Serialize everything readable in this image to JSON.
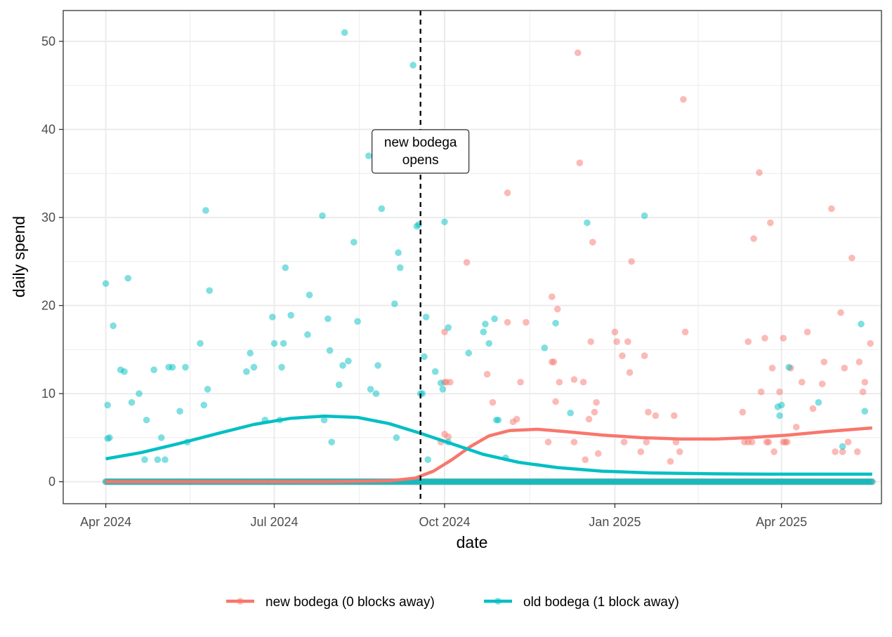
{
  "chart_data": {
    "type": "scatter",
    "title": "",
    "xlabel": "date",
    "ylabel": "daily spend",
    "x_type": "date",
    "xlim": [
      "2024-03-09",
      "2025-05-25"
    ],
    "ylim": [
      -2.5,
      53.5
    ],
    "x_ticks": [
      {
        "date": "2024-04-01",
        "label": "Apr 2024"
      },
      {
        "date": "2024-07-01",
        "label": "Jul 2024"
      },
      {
        "date": "2024-10-01",
        "label": "Oct 2024"
      },
      {
        "date": "2025-01-01",
        "label": "Jan 2025"
      },
      {
        "date": "2025-04-01",
        "label": "Apr 2025"
      }
    ],
    "y_ticks": [
      0,
      10,
      20,
      30,
      40,
      50
    ],
    "grid": true,
    "legend_position": "bottom",
    "annotation": {
      "date": "2024-09-18",
      "lines": [
        "new bodega",
        "opens"
      ],
      "y": 37.5
    },
    "series": [
      {
        "name": "new bodega (0 blocks away)",
        "color": "#F8766D",
        "zero_range": [
          "2024-04-01",
          "2025-05-20"
        ],
        "points": [
          [
            "2024-10-01",
            17.0
          ],
          [
            "2024-10-01",
            11.3
          ],
          [
            "2024-10-02",
            11.3
          ],
          [
            "2024-10-04",
            11.3
          ],
          [
            "2024-10-03",
            5.1
          ],
          [
            "2024-09-29",
            4.5
          ],
          [
            "2024-10-01",
            5.4
          ],
          [
            "2024-10-13",
            24.9
          ],
          [
            "2024-10-24",
            12.2
          ],
          [
            "2024-10-27",
            9.0
          ],
          [
            "2024-11-04",
            32.8
          ],
          [
            "2024-11-04",
            18.1
          ],
          [
            "2024-11-07",
            6.8
          ],
          [
            "2024-11-09",
            7.1
          ],
          [
            "2024-11-11",
            11.3
          ],
          [
            "2024-11-14",
            18.1
          ],
          [
            "2024-11-26",
            4.5
          ],
          [
            "2024-11-28",
            21.0
          ],
          [
            "2024-11-28",
            13.6
          ],
          [
            "2024-11-29",
            13.6
          ],
          [
            "2024-11-30",
            9.1
          ],
          [
            "2024-12-01",
            19.6
          ],
          [
            "2024-12-02",
            11.3
          ],
          [
            "2024-12-10",
            4.5
          ],
          [
            "2024-12-10",
            11.6
          ],
          [
            "2024-12-12",
            48.7
          ],
          [
            "2024-12-13",
            36.2
          ],
          [
            "2024-12-15",
            11.3
          ],
          [
            "2024-12-16",
            2.5
          ],
          [
            "2024-12-18",
            7.1
          ],
          [
            "2024-12-19",
            15.9
          ],
          [
            "2024-12-20",
            27.2
          ],
          [
            "2024-12-21",
            7.9
          ],
          [
            "2024-12-22",
            9.0
          ],
          [
            "2024-12-23",
            3.2
          ],
          [
            "2025-01-01",
            17.0
          ],
          [
            "2025-01-02",
            15.9
          ],
          [
            "2025-01-05",
            14.3
          ],
          [
            "2025-01-06",
            4.5
          ],
          [
            "2025-01-08",
            15.9
          ],
          [
            "2025-01-09",
            12.4
          ],
          [
            "2025-01-10",
            25.0
          ],
          [
            "2025-01-15",
            3.4
          ],
          [
            "2025-01-17",
            14.3
          ],
          [
            "2025-01-18",
            4.5
          ],
          [
            "2025-01-19",
            7.9
          ],
          [
            "2025-01-23",
            7.5
          ],
          [
            "2025-01-31",
            2.3
          ],
          [
            "2025-02-02",
            7.5
          ],
          [
            "2025-02-03",
            4.5
          ],
          [
            "2025-02-05",
            3.4
          ],
          [
            "2025-02-07",
            43.4
          ],
          [
            "2025-02-08",
            17.0
          ],
          [
            "2025-03-11",
            7.9
          ],
          [
            "2025-03-12",
            4.5
          ],
          [
            "2025-03-14",
            15.9
          ],
          [
            "2025-03-14",
            4.5
          ],
          [
            "2025-03-16",
            4.5
          ],
          [
            "2025-03-17",
            27.6
          ],
          [
            "2025-03-20",
            35.1
          ],
          [
            "2025-03-21",
            10.2
          ],
          [
            "2025-03-23",
            16.3
          ],
          [
            "2025-03-24",
            4.5
          ],
          [
            "2025-03-25",
            4.5
          ],
          [
            "2025-03-26",
            29.4
          ],
          [
            "2025-03-27",
            12.9
          ],
          [
            "2025-03-28",
            3.4
          ],
          [
            "2025-03-31",
            10.2
          ],
          [
            "2025-04-02",
            16.3
          ],
          [
            "2025-04-02",
            4.5
          ],
          [
            "2025-04-03",
            4.5
          ],
          [
            "2025-04-04",
            4.5
          ],
          [
            "2025-04-06",
            12.9
          ],
          [
            "2025-04-09",
            6.2
          ],
          [
            "2025-04-12",
            11.3
          ],
          [
            "2025-04-15",
            17.0
          ],
          [
            "2025-04-18",
            8.3
          ],
          [
            "2025-04-23",
            11.1
          ],
          [
            "2025-04-24",
            13.6
          ],
          [
            "2025-04-28",
            31.0
          ],
          [
            "2025-04-30",
            3.4
          ],
          [
            "2025-05-03",
            19.2
          ],
          [
            "2025-05-04",
            3.4
          ],
          [
            "2025-05-05",
            12.9
          ],
          [
            "2025-05-07",
            4.5
          ],
          [
            "2025-05-09",
            25.4
          ],
          [
            "2025-05-12",
            3.4
          ],
          [
            "2025-05-13",
            13.6
          ],
          [
            "2025-05-15",
            10.2
          ],
          [
            "2025-05-16",
            11.3
          ],
          [
            "2025-05-19",
            15.7
          ]
        ],
        "trend": [
          [
            "2024-04-01",
            0
          ],
          [
            "2024-06-01",
            0
          ],
          [
            "2024-08-01",
            0
          ],
          [
            "2024-09-01",
            0.1
          ],
          [
            "2024-09-15",
            0.4
          ],
          [
            "2024-09-25",
            1.2
          ],
          [
            "2024-10-05",
            2.5
          ],
          [
            "2024-10-15",
            4.0
          ],
          [
            "2024-10-25",
            5.2
          ],
          [
            "2024-11-05",
            5.8
          ],
          [
            "2024-11-20",
            5.95
          ],
          [
            "2024-12-05",
            5.7
          ],
          [
            "2024-12-25",
            5.3
          ],
          [
            "2025-01-15",
            5.0
          ],
          [
            "2025-02-05",
            4.85
          ],
          [
            "2025-02-25",
            4.85
          ],
          [
            "2025-03-15",
            5.0
          ],
          [
            "2025-04-05",
            5.3
          ],
          [
            "2025-04-25",
            5.7
          ],
          [
            "2025-05-20",
            6.1
          ]
        ]
      },
      {
        "name": "old bodega (1 block away)",
        "color": "#00BFC4",
        "zero_range": [
          "2024-04-01",
          "2025-05-20"
        ],
        "points": [
          [
            "2024-04-01",
            22.5
          ],
          [
            "2024-04-02",
            8.7
          ],
          [
            "2024-04-02",
            4.9
          ],
          [
            "2024-04-03",
            5.0
          ],
          [
            "2024-04-05",
            17.7
          ],
          [
            "2024-04-09",
            12.7
          ],
          [
            "2024-04-11",
            12.5
          ],
          [
            "2024-04-13",
            23.1
          ],
          [
            "2024-04-15",
            9.0
          ],
          [
            "2024-04-19",
            10.0
          ],
          [
            "2024-04-22",
            2.5
          ],
          [
            "2024-04-23",
            7.0
          ],
          [
            "2024-04-27",
            12.7
          ],
          [
            "2024-04-29",
            2.5
          ],
          [
            "2024-05-01",
            5.0
          ],
          [
            "2024-05-03",
            2.5
          ],
          [
            "2024-05-05",
            13.0
          ],
          [
            "2024-05-07",
            13.0
          ],
          [
            "2024-05-11",
            8.0
          ],
          [
            "2024-05-14",
            13.0
          ],
          [
            "2024-05-15",
            4.5
          ],
          [
            "2024-05-22",
            15.7
          ],
          [
            "2024-05-24",
            8.7
          ],
          [
            "2024-05-25",
            30.8
          ],
          [
            "2024-05-26",
            10.5
          ],
          [
            "2024-05-27",
            21.7
          ],
          [
            "2024-06-16",
            12.5
          ],
          [
            "2024-06-18",
            14.6
          ],
          [
            "2024-06-20",
            13.0
          ],
          [
            "2024-06-26",
            7.0
          ],
          [
            "2024-06-30",
            18.7
          ],
          [
            "2024-07-01",
            15.7
          ],
          [
            "2024-07-04",
            7.0
          ],
          [
            "2024-07-05",
            13.0
          ],
          [
            "2024-07-06",
            15.7
          ],
          [
            "2024-07-07",
            24.3
          ],
          [
            "2024-07-10",
            18.9
          ],
          [
            "2024-07-19",
            16.7
          ],
          [
            "2024-07-20",
            21.2
          ],
          [
            "2024-07-27",
            30.2
          ],
          [
            "2024-07-28",
            7.0
          ],
          [
            "2024-07-30",
            18.5
          ],
          [
            "2024-07-31",
            14.9
          ],
          [
            "2024-08-01",
            4.5
          ],
          [
            "2024-08-05",
            11.0
          ],
          [
            "2024-08-07",
            13.2
          ],
          [
            "2024-08-08",
            51.0
          ],
          [
            "2024-08-10",
            13.7
          ],
          [
            "2024-08-13",
            27.2
          ],
          [
            "2024-08-15",
            18.2
          ],
          [
            "2024-08-21",
            37.0
          ],
          [
            "2024-08-22",
            10.5
          ],
          [
            "2024-08-25",
            10.0
          ],
          [
            "2024-08-26",
            13.2
          ],
          [
            "2024-08-28",
            31.0
          ],
          [
            "2024-09-04",
            20.2
          ],
          [
            "2024-09-05",
            5.0
          ],
          [
            "2024-09-06",
            26.0
          ],
          [
            "2024-09-07",
            24.3
          ],
          [
            "2024-09-14",
            47.3
          ],
          [
            "2024-09-16",
            29.0
          ],
          [
            "2024-09-17",
            29.2
          ],
          [
            "2024-09-18",
            10.0
          ],
          [
            "2024-09-19",
            10.0
          ],
          [
            "2024-09-20",
            14.2
          ],
          [
            "2024-09-21",
            18.7
          ],
          [
            "2024-09-22",
            2.5
          ],
          [
            "2024-09-26",
            12.5
          ],
          [
            "2024-09-29",
            11.2
          ],
          [
            "2024-09-30",
            10.5
          ],
          [
            "2024-10-01",
            29.5
          ],
          [
            "2024-10-03",
            17.5
          ],
          [
            "2024-10-03",
            4.5
          ],
          [
            "2024-10-14",
            14.6
          ],
          [
            "2024-10-22",
            17.0
          ],
          [
            "2024-10-23",
            17.9
          ],
          [
            "2024-10-25",
            15.7
          ],
          [
            "2024-10-28",
            18.5
          ],
          [
            "2024-10-29",
            7.0
          ],
          [
            "2024-10-30",
            7.0
          ],
          [
            "2024-11-03",
            2.7
          ],
          [
            "2024-11-24",
            15.2
          ],
          [
            "2024-11-30",
            18.0
          ],
          [
            "2024-12-08",
            7.8
          ],
          [
            "2024-12-17",
            29.4
          ],
          [
            "2025-01-17",
            30.2
          ],
          [
            "2025-03-30",
            8.5
          ],
          [
            "2025-03-31",
            7.5
          ],
          [
            "2025-04-01",
            8.7
          ],
          [
            "2025-04-05",
            13.0
          ],
          [
            "2025-04-21",
            9.0
          ],
          [
            "2025-05-04",
            4.0
          ],
          [
            "2025-05-14",
            17.9
          ],
          [
            "2025-05-16",
            8.0
          ]
        ],
        "trend": [
          [
            "2024-04-01",
            2.6
          ],
          [
            "2024-04-20",
            3.3
          ],
          [
            "2024-05-10",
            4.3
          ],
          [
            "2024-06-01",
            5.5
          ],
          [
            "2024-06-20",
            6.5
          ],
          [
            "2024-07-10",
            7.2
          ],
          [
            "2024-07-28",
            7.45
          ],
          [
            "2024-08-15",
            7.3
          ],
          [
            "2024-09-01",
            6.6
          ],
          [
            "2024-09-18",
            5.5
          ],
          [
            "2024-10-05",
            4.3
          ],
          [
            "2024-10-22",
            3.1
          ],
          [
            "2024-11-10",
            2.2
          ],
          [
            "2024-12-01",
            1.6
          ],
          [
            "2024-12-25",
            1.2
          ],
          [
            "2025-01-20",
            1.0
          ],
          [
            "2025-02-20",
            0.9
          ],
          [
            "2025-03-25",
            0.85
          ],
          [
            "2025-04-20",
            0.85
          ],
          [
            "2025-05-20",
            0.85
          ]
        ]
      }
    ]
  }
}
